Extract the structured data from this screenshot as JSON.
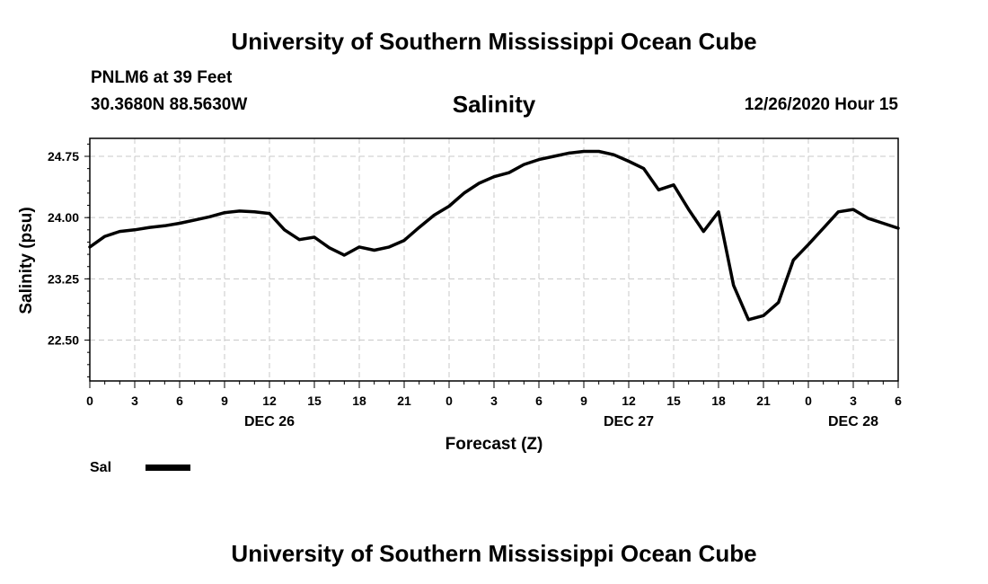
{
  "header": {
    "top_title": "University of Southern Mississippi Ocean Cube",
    "station": "PNLM6 at 39 Feet",
    "coords": "30.3680N 88.5630W",
    "variable": "Salinity",
    "timestamp": "12/26/2020 Hour 15"
  },
  "footer": {
    "bottom_title": "University of Southern Mississippi Ocean Cube"
  },
  "legend": {
    "label": "Sal"
  },
  "chart_data": {
    "type": "line",
    "title": "Salinity",
    "xlabel": "Forecast (Z)",
    "ylabel": "Salinity (psu)",
    "xlim": [
      0,
      54
    ],
    "ylim": [
      22.0,
      24.97
    ],
    "grid": true,
    "x_tick_labels": [
      "0",
      "3",
      "6",
      "9",
      "12",
      "15",
      "18",
      "21",
      "0",
      "3",
      "6",
      "9",
      "12",
      "15",
      "18",
      "21",
      "0",
      "3",
      "6"
    ],
    "day_labels": [
      {
        "label": "DEC 26",
        "x": 12
      },
      {
        "label": "DEC 27",
        "x": 36
      },
      {
        "label": "DEC 28",
        "x": 51
      }
    ],
    "y_ticks": [
      22.5,
      23.25,
      24.0,
      24.75
    ],
    "y_tick_labels": [
      "22.50",
      "23.25",
      "24.00",
      "24.75"
    ],
    "series": [
      {
        "name": "Sal",
        "x": [
          0,
          1,
          2,
          3,
          4,
          5,
          6,
          7,
          8,
          9,
          10,
          11,
          12,
          13,
          14,
          15,
          16,
          17,
          18,
          19,
          20,
          21,
          22,
          23,
          24,
          25,
          26,
          27,
          28,
          29,
          30,
          31,
          32,
          33,
          34,
          35,
          36,
          37,
          38,
          39,
          40,
          41,
          42,
          43,
          44,
          45,
          46,
          47,
          48,
          49,
          50,
          51,
          52,
          53,
          54
        ],
        "values": [
          23.64,
          23.77,
          23.83,
          23.85,
          23.88,
          23.9,
          23.93,
          23.97,
          24.01,
          24.06,
          24.08,
          24.07,
          24.05,
          23.85,
          23.73,
          23.76,
          23.63,
          23.54,
          23.64,
          23.6,
          23.64,
          23.72,
          23.88,
          24.03,
          24.14,
          24.3,
          24.42,
          24.5,
          24.55,
          24.65,
          24.71,
          24.75,
          24.79,
          24.81,
          24.81,
          24.77,
          24.69,
          24.6,
          24.34,
          24.4,
          24.1,
          23.83,
          24.07,
          23.17,
          22.75,
          22.8,
          22.96,
          23.48,
          23.67,
          23.87,
          24.07,
          24.1,
          23.99,
          23.93,
          23.87
        ]
      }
    ]
  }
}
